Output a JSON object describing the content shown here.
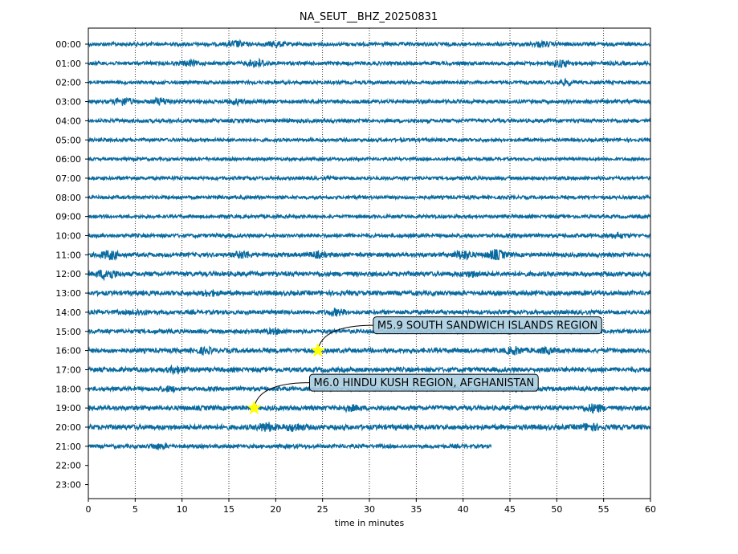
{
  "chart_data": {
    "type": "line",
    "title": "NA_SEUT__BHZ_20250831",
    "xlabel": "time in minutes",
    "ylabel": "",
    "xlim": [
      0,
      60
    ],
    "x_ticks": [
      0,
      5,
      10,
      15,
      20,
      25,
      30,
      35,
      40,
      45,
      50,
      55,
      60
    ],
    "x_tick_labels": [
      "0",
      "5",
      "10",
      "15",
      "20",
      "25",
      "30",
      "35",
      "40",
      "45",
      "50",
      "55",
      "60"
    ],
    "hour_labels": [
      "00:00",
      "01:00",
      "02:00",
      "03:00",
      "04:00",
      "05:00",
      "06:00",
      "07:00",
      "08:00",
      "09:00",
      "10:00",
      "11:00",
      "12:00",
      "13:00",
      "14:00",
      "15:00",
      "16:00",
      "17:00",
      "18:00",
      "19:00",
      "20:00",
      "21:00",
      "22:00",
      "23:00"
    ],
    "grid": "vertical dotted",
    "trace_color": "#0a6ba0",
    "star_color": "#ffff00",
    "rows": [
      {
        "hour": "00:00",
        "amplitude": 0.22,
        "end_minute": 60,
        "bursts": [
          {
            "t": 15.8,
            "a": 0.5
          },
          {
            "t": 20,
            "a": 0.45
          },
          {
            "t": 48.5,
            "a": 0.45
          }
        ]
      },
      {
        "hour": "01:00",
        "amplitude": 0.22,
        "end_minute": 60,
        "bursts": [
          {
            "t": 10.8,
            "a": 0.45
          },
          {
            "t": 18,
            "a": 0.6
          },
          {
            "t": 50.5,
            "a": 0.55
          }
        ]
      },
      {
        "hour": "02:00",
        "amplitude": 0.2,
        "end_minute": 60,
        "bursts": [
          {
            "t": 51,
            "a": 0.45
          }
        ]
      },
      {
        "hour": "03:00",
        "amplitude": 0.22,
        "end_minute": 60,
        "bursts": [
          {
            "t": 3.8,
            "a": 0.6
          },
          {
            "t": 7.8,
            "a": 0.55
          },
          {
            "t": 15.8,
            "a": 0.45
          }
        ]
      },
      {
        "hour": "04:00",
        "amplitude": 0.22,
        "end_minute": 60,
        "bursts": []
      },
      {
        "hour": "05:00",
        "amplitude": 0.2,
        "end_minute": 60,
        "bursts": []
      },
      {
        "hour": "06:00",
        "amplitude": 0.18,
        "end_minute": 60,
        "bursts": []
      },
      {
        "hour": "07:00",
        "amplitude": 0.2,
        "end_minute": 60,
        "bursts": []
      },
      {
        "hour": "08:00",
        "amplitude": 0.2,
        "end_minute": 60,
        "bursts": []
      },
      {
        "hour": "09:00",
        "amplitude": 0.2,
        "end_minute": 60,
        "bursts": []
      },
      {
        "hour": "10:00",
        "amplitude": 0.22,
        "end_minute": 60,
        "bursts": [
          {
            "t": 56.5,
            "a": 0.45
          }
        ]
      },
      {
        "hour": "11:00",
        "amplitude": 0.25,
        "end_minute": 60,
        "bursts": [
          {
            "t": 2.3,
            "a": 0.7
          },
          {
            "t": 16.5,
            "a": 0.6
          },
          {
            "t": 24.5,
            "a": 0.5
          },
          {
            "t": 40,
            "a": 0.7
          },
          {
            "t": 43.5,
            "a": 0.75
          }
        ]
      },
      {
        "hour": "12:00",
        "amplitude": 0.28,
        "end_minute": 60,
        "bursts": [
          {
            "t": 2,
            "a": 0.8
          },
          {
            "t": 41,
            "a": 0.5
          }
        ]
      },
      {
        "hour": "13:00",
        "amplitude": 0.28,
        "end_minute": 60,
        "bursts": [
          {
            "t": 13,
            "a": 0.5
          }
        ]
      },
      {
        "hour": "14:00",
        "amplitude": 0.25,
        "end_minute": 60,
        "bursts": [
          {
            "t": 5.5,
            "a": 0.45
          },
          {
            "t": 26.5,
            "a": 0.55
          }
        ]
      },
      {
        "hour": "15:00",
        "amplitude": 0.25,
        "end_minute": 60,
        "bursts": [
          {
            "t": 20,
            "a": 0.45
          }
        ]
      },
      {
        "hour": "16:00",
        "amplitude": 0.28,
        "end_minute": 60,
        "bursts": [
          {
            "t": 12.5,
            "a": 0.5
          },
          {
            "t": 45.5,
            "a": 0.6
          },
          {
            "t": 49,
            "a": 0.5
          }
        ]
      },
      {
        "hour": "17:00",
        "amplitude": 0.28,
        "end_minute": 60,
        "bursts": [
          {
            "t": 9.5,
            "a": 0.6
          }
        ]
      },
      {
        "hour": "18:00",
        "amplitude": 0.25,
        "end_minute": 60,
        "bursts": [
          {
            "t": 8.5,
            "a": 0.45
          },
          {
            "t": 45.5,
            "a": 0.5
          }
        ]
      },
      {
        "hour": "19:00",
        "amplitude": 0.28,
        "end_minute": 60,
        "bursts": [
          {
            "t": 28,
            "a": 0.5
          },
          {
            "t": 54,
            "a": 0.65
          }
        ]
      },
      {
        "hour": "20:00",
        "amplitude": 0.3,
        "end_minute": 60,
        "bursts": [
          {
            "t": 19,
            "a": 0.7
          },
          {
            "t": 22,
            "a": 0.65
          },
          {
            "t": 53.5,
            "a": 0.6
          }
        ]
      },
      {
        "hour": "21:00",
        "amplitude": 0.22,
        "end_minute": 43,
        "bursts": [
          {
            "t": 7.5,
            "a": 0.45
          }
        ]
      }
    ],
    "events": [
      {
        "label": "M5.9 SOUTH SANDWICH ISLANDS REGION",
        "hour_index": 16,
        "minute": 24.5
      },
      {
        "label": "M6.0 HINDU KUSH REGION, AFGHANISTAN",
        "hour_index": 19,
        "minute": 17.7
      }
    ]
  }
}
